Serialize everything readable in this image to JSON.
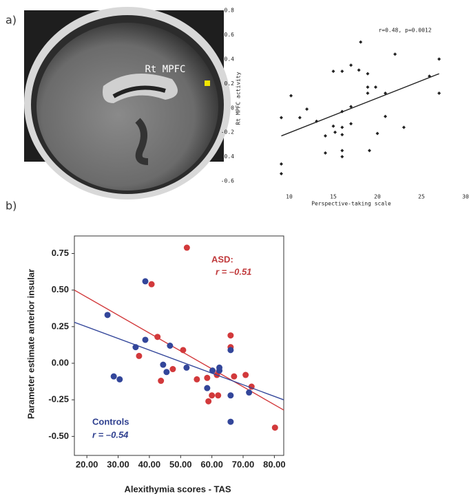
{
  "panel_labels": [
    "a)",
    "b)"
  ],
  "image_label": "Rt MPFC",
  "chart_data": [
    {
      "type": "scatter",
      "xlabel": "Perspective-taking scale",
      "ylabel": "Rt MPFC activity",
      "annotations": [
        {
          "text": "r=0.48, p=0.0012",
          "color": "#222222"
        }
      ],
      "xlim": [
        5,
        30
      ],
      "ylim": [
        -0.65,
        0.8
      ],
      "xticks": [
        10,
        15,
        20,
        25,
        30
      ],
      "yticks": [
        0.8,
        0.6,
        0.4,
        0.2,
        0,
        -0.2,
        -0.4,
        -0.6
      ],
      "series": [
        {
          "color": "#222222",
          "x": [
            9.1,
            9.1,
            9.1,
            10.2,
            11.2,
            12.0,
            13.1,
            14.1,
            14.1,
            15.0,
            15.0,
            15.2,
            16.0,
            16.0,
            16.0,
            16.0,
            16.0,
            16.0,
            17.0,
            17.0,
            17.0,
            17.9,
            18.1,
            18.9,
            18.9,
            18.9,
            19.1,
            19.8,
            20.0,
            20.9,
            20.9,
            22.0,
            23.0,
            25.9,
            27.0,
            27.0
          ],
          "values": [
            -0.46,
            -0.54,
            -0.08,
            0.1,
            -0.08,
            -0.01,
            -0.11,
            -0.23,
            -0.37,
            0.3,
            -0.15,
            -0.2,
            0.3,
            -0.03,
            -0.16,
            -0.22,
            -0.35,
            -0.4,
            0.35,
            0.01,
            -0.13,
            0.31,
            0.54,
            0.28,
            0.17,
            0.12,
            -0.35,
            0.17,
            -0.21,
            0.12,
            -0.07,
            0.44,
            -0.16,
            0.26,
            0.4,
            0.12
          ],
          "trend": {
            "x": [
              9.1,
              27.0
            ],
            "values": [
              -0.23,
              0.28
            ]
          }
        }
      ]
    },
    {
      "type": "scatter",
      "xlabel": "Alexithymia scores - TAS",
      "ylabel": "Parameter estimate anterior insular",
      "annotations": [
        {
          "text": "ASD:",
          "color": "#c0393b"
        },
        {
          "text": "r = –0.51",
          "color": "#c0393b"
        },
        {
          "text": "Controls",
          "color": "#2e3f8f"
        },
        {
          "text": "r = –0.54",
          "color": "#2e3f8f"
        }
      ],
      "xlim": [
        16,
        83
      ],
      "ylim": [
        -0.63,
        0.87
      ],
      "xticks": [
        {
          "value": 20,
          "label": "20.00"
        },
        {
          "value": 30,
          "label": "30.00"
        },
        {
          "value": 40,
          "label": "40.00"
        },
        {
          "value": 50,
          "label": "50.00"
        },
        {
          "value": 60,
          "label": "60.00"
        },
        {
          "value": 70,
          "label": "70.00"
        },
        {
          "value": 80,
          "label": "80.00"
        }
      ],
      "yticks": [
        0.75,
        {
          "value": 0.5,
          "label": "0.50"
        },
        0.25,
        {
          "value": 0,
          "label": "0.00"
        },
        -0.25,
        {
          "value": -0.5,
          "label": "-0.50"
        }
      ],
      "series": [
        {
          "color": "#d2393b",
          "x": [
            52,
            40.7,
            42.6,
            36.7,
            43.7,
            47.5,
            50.8,
            55.2,
            58.5,
            58.9,
            60.0,
            62.0,
            61.6,
            66.0,
            66.0,
            67.1,
            70.8,
            72.7,
            80.2
          ],
          "values": [
            0.79,
            0.54,
            0.18,
            0.05,
            -0.12,
            -0.04,
            0.09,
            -0.11,
            -0.1,
            -0.26,
            -0.22,
            -0.22,
            -0.08,
            0.19,
            0.11,
            -0.09,
            -0.08,
            -0.16,
            -0.44
          ],
          "trend": {
            "x": [
              16,
              83
            ],
            "values": [
              0.5,
              -0.32
            ]
          }
        },
        {
          "color": "#33469a",
          "x": [
            26.6,
            38.7,
            28.6,
            30.5,
            38.7,
            35.6,
            44.4,
            45.5,
            46.6,
            51.9,
            58.5,
            60.2,
            62.4,
            62.4,
            66.0,
            66.0,
            66.0,
            71.9
          ],
          "values": [
            0.33,
            0.56,
            -0.09,
            -0.11,
            0.16,
            0.11,
            -0.01,
            -0.06,
            0.12,
            -0.03,
            -0.17,
            -0.05,
            -0.03,
            -0.05,
            0.09,
            -0.22,
            -0.4,
            -0.2
          ],
          "trend": {
            "x": [
              16,
              83
            ],
            "values": [
              0.28,
              -0.25
            ]
          }
        }
      ]
    }
  ]
}
